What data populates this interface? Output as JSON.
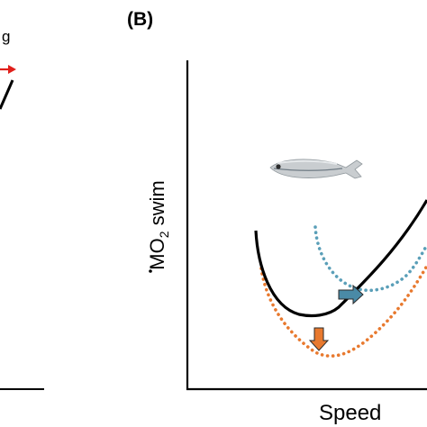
{
  "left_panel": {
    "partial_label": "g",
    "arrow_color": "#e0201b"
  },
  "right_panel": {
    "panel_label": "(B)",
    "ylabel": {
      "prefix": "M",
      "o_letter": "O",
      "subscript": "2",
      "suffix": " swim"
    },
    "xlabel": "Speed",
    "fish_icon": "fish-icon",
    "colors": {
      "baseline": "#000000",
      "orange": "#e8792e",
      "blue": "#5a9fb8",
      "arrow_orange_fill": "#e8792e",
      "arrow_blue_fill": "#4a8aa6",
      "arrow_stroke": "#2a2a2a"
    }
  },
  "chart_data": {
    "type": "line",
    "title": "",
    "xlabel": "Speed",
    "ylabel": "ṀO2 swim",
    "series": [
      {
        "style": "solid",
        "color": "#000000",
        "shape": "U-shaped curve, minimum at moderate speed"
      },
      {
        "style": "dotted",
        "color": "#e8792e",
        "shape": "U-shaped curve shifted down (lower cost)"
      },
      {
        "style": "dotted",
        "color": "#5a9fb8",
        "shape": "U-shaped curve shifted right (higher optimal speed)"
      }
    ],
    "arrows": [
      {
        "direction": "down",
        "color": "#e8792e"
      },
      {
        "direction": "right",
        "color": "#4a8aa6"
      }
    ],
    "grid": false
  }
}
